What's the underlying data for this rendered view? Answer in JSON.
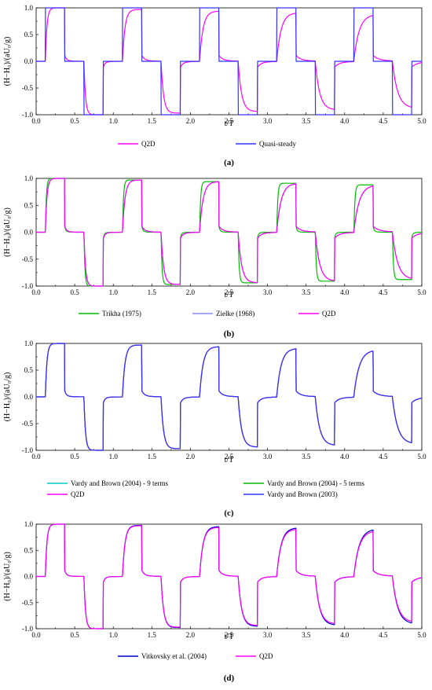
{
  "chart_data": [
    {
      "type": "line",
      "caption": "(a)",
      "xlabel": "t/T",
      "ylabel": "(H−H₀)/(aU₀/g)",
      "xlim": [
        0,
        5
      ],
      "ylim": [
        -1,
        1
      ],
      "xticks": [
        "0.0",
        "0.5",
        "1.0",
        "1.5",
        "2.0",
        "2.5",
        "3.0",
        "3.5",
        "4.0",
        "4.5",
        "5.0"
      ],
      "yticks": [
        "-1.0",
        "-0.5",
        "0.0",
        "0.5",
        "1.0"
      ],
      "series": [
        {
          "name": "Q2D",
          "color": "#ff00ff",
          "model": "q2d"
        },
        {
          "name": "Quasi-steady",
          "color": "#3333ff",
          "model": "square"
        }
      ]
    },
    {
      "type": "line",
      "caption": "(b)",
      "xlabel": "t/T",
      "ylabel": "(H−H₀)/(aU₀/g)",
      "xlim": [
        0,
        5
      ],
      "ylim": [
        -1,
        1
      ],
      "xticks": [
        "0.0",
        "0.5",
        "1.0",
        "1.5",
        "2.0",
        "2.5",
        "3.0",
        "3.5",
        "4.0",
        "4.5",
        "5.0"
      ],
      "yticks": [
        "-1.0",
        "-0.5",
        "0.0",
        "0.5",
        "1.0"
      ],
      "series": [
        {
          "name": "Trikha (1975)",
          "color": "#00bb00",
          "model": "trikha"
        },
        {
          "name": "Zielke (1968)",
          "color": "#8888ff",
          "model": "q2d"
        },
        {
          "name": "Q2D",
          "color": "#ff00ff",
          "model": "q2d"
        }
      ]
    },
    {
      "type": "line",
      "caption": "(c)",
      "xlabel": "t/T",
      "ylabel": "(H−H₀)/(aU₀/g)",
      "xlim": [
        0,
        5
      ],
      "ylim": [
        -1,
        1
      ],
      "xticks": [
        "0.0",
        "0.5",
        "1.0",
        "1.5",
        "2.0",
        "2.5",
        "3.0",
        "3.5",
        "4.0",
        "4.5",
        "5.0"
      ],
      "yticks": [
        "-1.0",
        "-0.5",
        "0.0",
        "0.5",
        "1.0"
      ],
      "series": [
        {
          "name": "Vardy and Brown (2004) - 9 terms",
          "color": "#00cccc",
          "model": "q2d"
        },
        {
          "name": "Vardy and Brown (2004) - 5 terms",
          "color": "#00bb00",
          "model": "q2d"
        },
        {
          "name": "Q2D",
          "color": "#ff00ff",
          "model": "q2d"
        },
        {
          "name": "Vardy and Brown (2003)",
          "color": "#3333ff",
          "model": "q2d"
        }
      ]
    },
    {
      "type": "line",
      "caption": "(d)",
      "xlabel": "t/T",
      "ylabel": "(H−H₀)/(aU₀/g)",
      "xlim": [
        0,
        5
      ],
      "ylim": [
        -1,
        1
      ],
      "xticks": [
        "0.0",
        "0.5",
        "1.0",
        "1.5",
        "2.0",
        "2.5",
        "3.0",
        "3.5",
        "4.0",
        "4.5",
        "5.0"
      ],
      "yticks": [
        "-1.0",
        "-0.5",
        "0.0",
        "0.5",
        "1.0"
      ],
      "series": [
        {
          "name": "Vitkovsky et al. (2004)",
          "color": "#0000cc",
          "model": "vitkovsky"
        },
        {
          "name": "Q2D",
          "color": "#ff00ff",
          "model": "q2d"
        }
      ]
    }
  ]
}
